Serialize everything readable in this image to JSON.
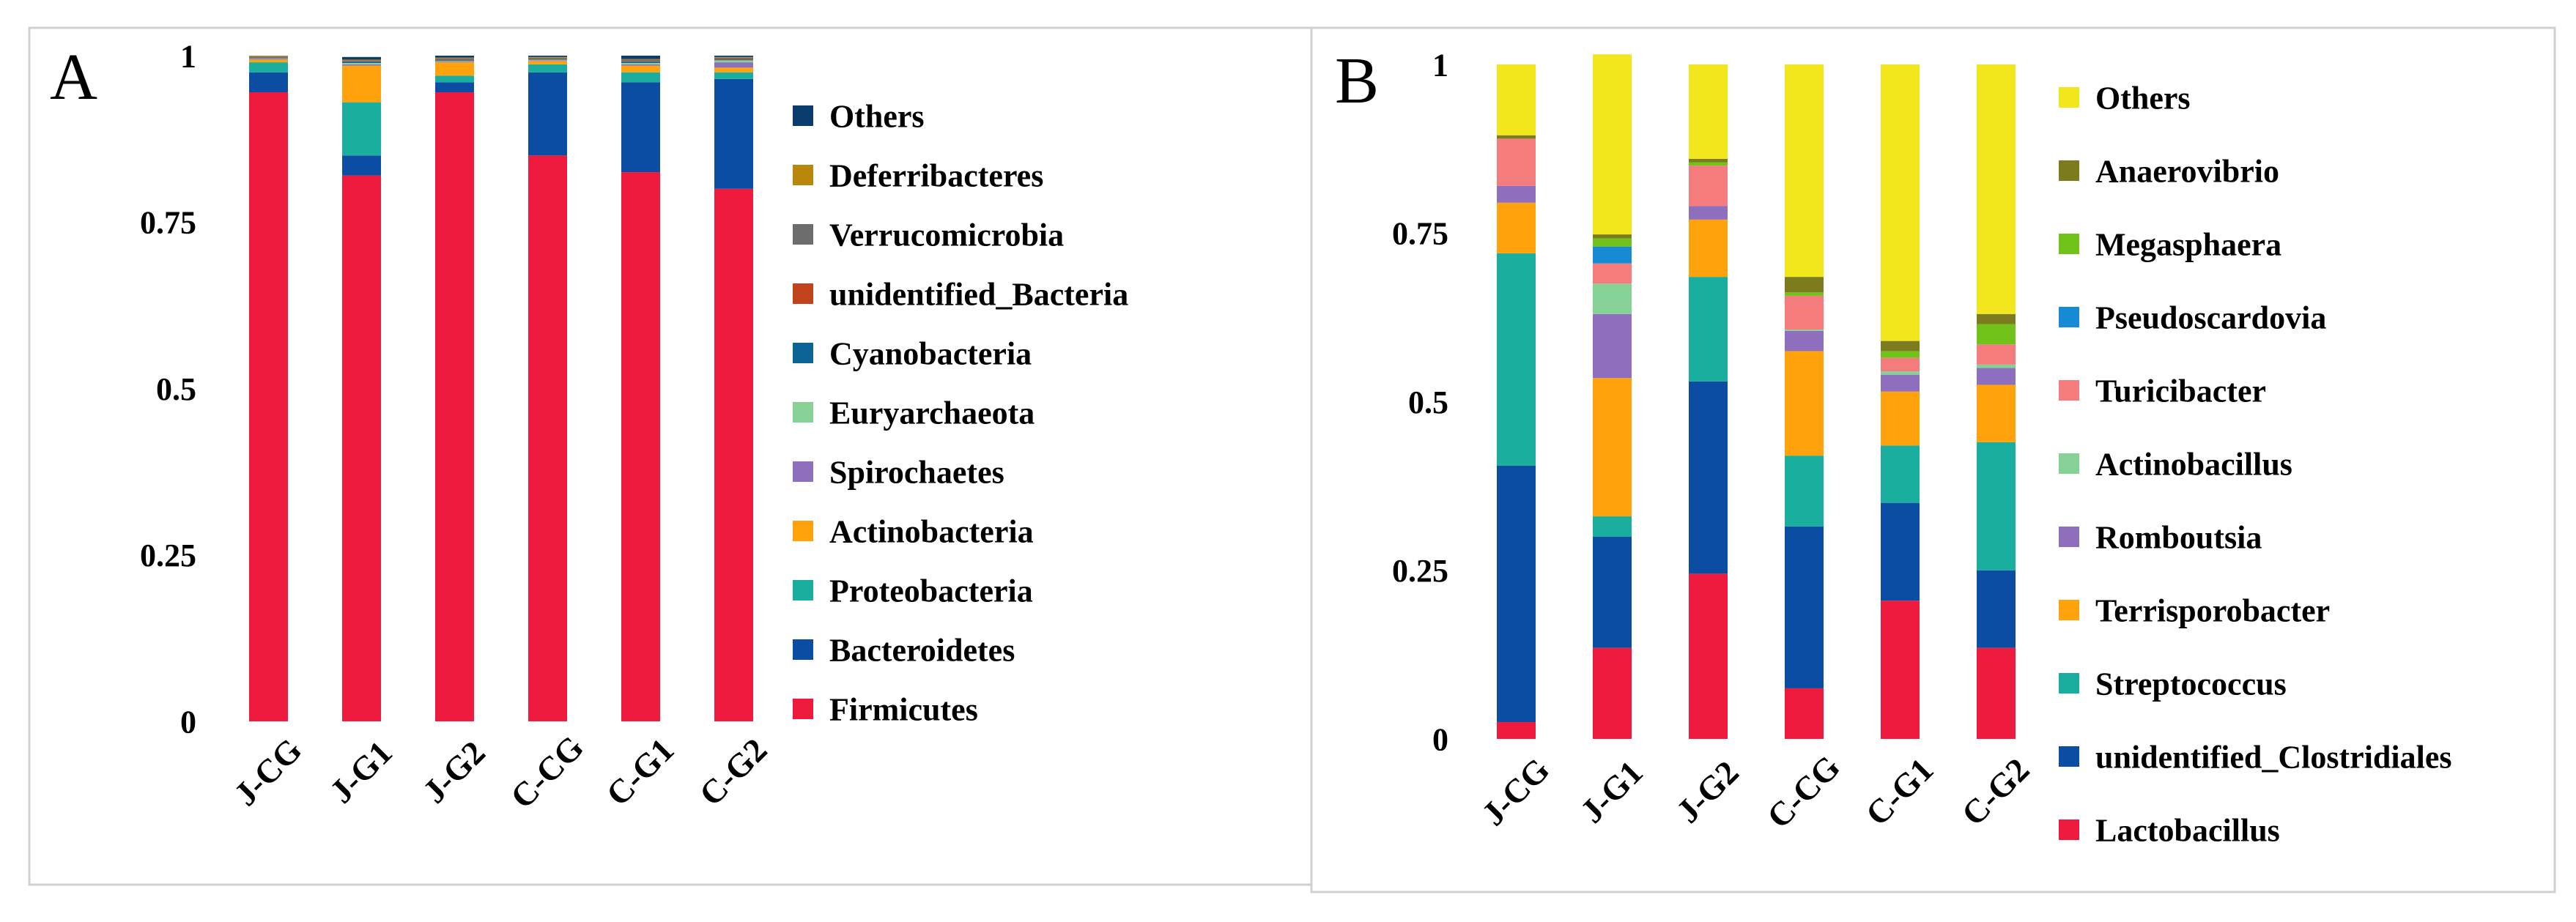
{
  "chart_data": [
    {
      "type": "bar",
      "stacked": true,
      "panel_label": "A",
      "categories": [
        "J-CG",
        "J-G1",
        "J-G2",
        "C-CG",
        "C-G1",
        "C-G2"
      ],
      "ylim": [
        0,
        1
      ],
      "yticks": [
        "0",
        "0.25",
        "0.5",
        "0.75",
        "1"
      ],
      "series": [
        {
          "name": "Firmicutes",
          "color": "#EE1B3E",
          "values": [
            0.945,
            0.82,
            0.945,
            0.85,
            0.825,
            0.8
          ]
        },
        {
          "name": "Bacteroidetes",
          "color": "#0B4DA2",
          "values": [
            0.03,
            0.03,
            0.015,
            0.125,
            0.135,
            0.165
          ]
        },
        {
          "name": "Proteobacteria",
          "color": "#1AAE9F",
          "values": [
            0.015,
            0.08,
            0.01,
            0.012,
            0.015,
            0.01
          ]
        },
        {
          "name": "Actinobacteria",
          "color": "#FFA20C",
          "values": [
            0.004,
            0.055,
            0.02,
            0.005,
            0.01,
            0.007
          ]
        },
        {
          "name": "Spirochaetes",
          "color": "#8E6FBE",
          "values": [
            0.001,
            0.002,
            0.001,
            0.001,
            0.002,
            0.008
          ]
        },
        {
          "name": "Euryarchaeota",
          "color": "#86D196",
          "values": [
            0.001,
            0.002,
            0.001,
            0.001,
            0.002,
            0.003
          ]
        },
        {
          "name": "Cyanobacteria",
          "color": "#0C6496",
          "values": [
            0.001,
            0.002,
            0.001,
            0.001,
            0.002,
            0.001
          ]
        },
        {
          "name": "unidentified_Bacteria",
          "color": "#C0431B",
          "values": [
            0.001,
            0.001,
            0.001,
            0.001,
            0.001,
            0.001
          ]
        },
        {
          "name": "Verrucomicrobia",
          "color": "#6D6D6D",
          "values": [
            0.001,
            0.001,
            0.002,
            0.001,
            0.002,
            0.002
          ]
        },
        {
          "name": "Deferribacteres",
          "color": "#B8860B",
          "values": [
            0.001,
            0.001,
            0.001,
            0.001,
            0.001,
            0.001
          ]
        },
        {
          "name": "Others",
          "color": "#0B3C6E",
          "values": [
            0.0,
            0.004,
            0.003,
            0.002,
            0.005,
            0.002
          ]
        }
      ],
      "legend_order": [
        "Others",
        "Deferribacteres",
        "Verrucomicrobia",
        "unidentified_Bacteria",
        "Cyanobacteria",
        "Euryarchaeota",
        "Spirochaetes",
        "Actinobacteria",
        "Proteobacteria",
        "Bacteroidetes",
        "Firmicutes"
      ],
      "legend_position": "right"
    },
    {
      "type": "bar",
      "stacked": true,
      "panel_label": "B",
      "categories": [
        "J-CG",
        "J-G1",
        "J-G2",
        "C-CG",
        "C-G1",
        "C-G2"
      ],
      "ylim": [
        0,
        1
      ],
      "yticks": [
        "0",
        "0.25",
        "0.5",
        "0.75",
        "1"
      ],
      "series": [
        {
          "name": "Lactobacillus",
          "color": "#EE1B3E",
          "values": [
            0.025,
            0.135,
            0.245,
            0.075,
            0.205,
            0.135
          ]
        },
        {
          "name": "unidentified_Clostridiales",
          "color": "#0B4DA2",
          "values": [
            0.38,
            0.165,
            0.285,
            0.24,
            0.145,
            0.115
          ]
        },
        {
          "name": "Streptococcus",
          "color": "#1AAE9F",
          "values": [
            0.315,
            0.03,
            0.155,
            0.105,
            0.085,
            0.19
          ]
        },
        {
          "name": "Terrisporobacter",
          "color": "#FFA20C",
          "values": [
            0.075,
            0.205,
            0.085,
            0.155,
            0.08,
            0.085
          ]
        },
        {
          "name": "Romboutsia",
          "color": "#8E6FBE",
          "values": [
            0.025,
            0.095,
            0.02,
            0.03,
            0.025,
            0.025
          ]
        },
        {
          "name": "Actinobacillus",
          "color": "#86D196",
          "values": [
            0.0,
            0.045,
            0.0,
            0.002,
            0.005,
            0.005
          ]
        },
        {
          "name": "Turicibacter",
          "color": "#F47C7C",
          "values": [
            0.07,
            0.03,
            0.06,
            0.05,
            0.02,
            0.03
          ]
        },
        {
          "name": "Pseudoscardovia",
          "color": "#168AD4",
          "values": [
            0.0,
            0.025,
            0.0,
            0.0,
            0.0,
            0.0
          ]
        },
        {
          "name": "Megasphaera",
          "color": "#71C31A",
          "values": [
            0.0,
            0.012,
            0.005,
            0.005,
            0.01,
            0.03
          ]
        },
        {
          "name": "Anaerovibrio",
          "color": "#7C7C1E",
          "values": [
            0.005,
            0.006,
            0.005,
            0.023,
            0.015,
            0.015
          ]
        },
        {
          "name": "Others",
          "color": "#F2E61D",
          "values": [
            0.105,
            0.267,
            0.14,
            0.315,
            0.41,
            0.37
          ]
        }
      ],
      "legend_order": [
        "Others",
        "Anaerovibrio",
        "Megasphaera",
        "Pseudoscardovia",
        "Turicibacter",
        "Actinobacillus",
        "Romboutsia",
        "Terrisporobacter",
        "Streptococcus",
        "unidentified_Clostridiales",
        "Lactobacillus"
      ],
      "legend_position": "right"
    }
  ]
}
